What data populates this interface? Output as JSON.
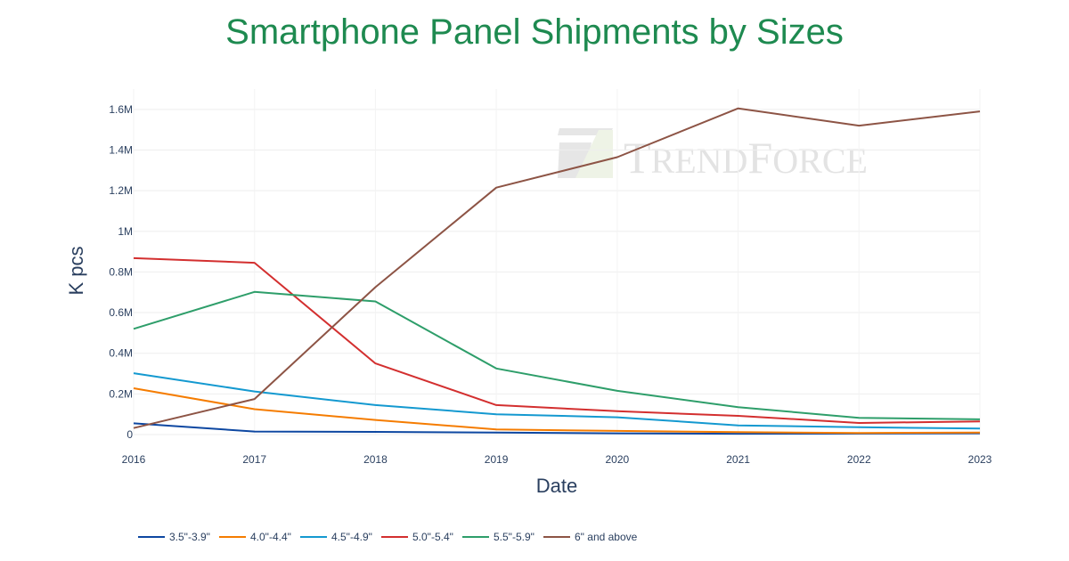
{
  "chart_data": {
    "type": "line",
    "title": "Smartphone Panel Shipments by Sizes",
    "xlabel": "Date",
    "ylabel": "K pcs",
    "x": [
      2016,
      2017,
      2018,
      2019,
      2020,
      2021,
      2022,
      2023
    ],
    "x_tick_labels": [
      "2016",
      "2017",
      "2018",
      "2019",
      "2020",
      "2021",
      "2022",
      "2023"
    ],
    "ylim": [
      0,
      1700000
    ],
    "y_ticks": [
      0,
      200000,
      400000,
      600000,
      800000,
      1000000,
      1200000,
      1400000,
      1600000
    ],
    "y_tick_labels": [
      "0",
      "0.2M",
      "0.4M",
      "0.6M",
      "0.8M",
      "1M",
      "1.2M",
      "1.4M",
      "1.6M"
    ],
    "grid": true,
    "legend_position": "bottom",
    "watermark": "TRENDFORCE",
    "series": [
      {
        "name": "3.5\"-3.9\"",
        "color": "#0d47a1",
        "values": [
          55000,
          15000,
          13000,
          10000,
          6000,
          4000,
          5000,
          6000
        ]
      },
      {
        "name": "4.0\"-4.4\"",
        "color": "#f57c00",
        "values": [
          228000,
          125000,
          72000,
          25000,
          18000,
          12000,
          8000,
          10000
        ]
      },
      {
        "name": "4.5\"-4.9\"",
        "color": "#1499d0",
        "values": [
          302000,
          212000,
          145000,
          100000,
          85000,
          45000,
          36000,
          30000
        ]
      },
      {
        "name": "5.0\"-5.4\"",
        "color": "#d32f2f",
        "values": [
          868000,
          845000,
          350000,
          145000,
          115000,
          92000,
          57000,
          65000
        ]
      },
      {
        "name": "5.5\"-5.9\"",
        "color": "#2e9e6a",
        "values": [
          520000,
          702000,
          655000,
          325000,
          215000,
          135000,
          82000,
          75000
        ]
      },
      {
        "name": "6\" and above",
        "color": "#8d5445",
        "values": [
          32000,
          175000,
          725000,
          1215000,
          1365000,
          1605000,
          1520000,
          1590000
        ]
      }
    ]
  }
}
